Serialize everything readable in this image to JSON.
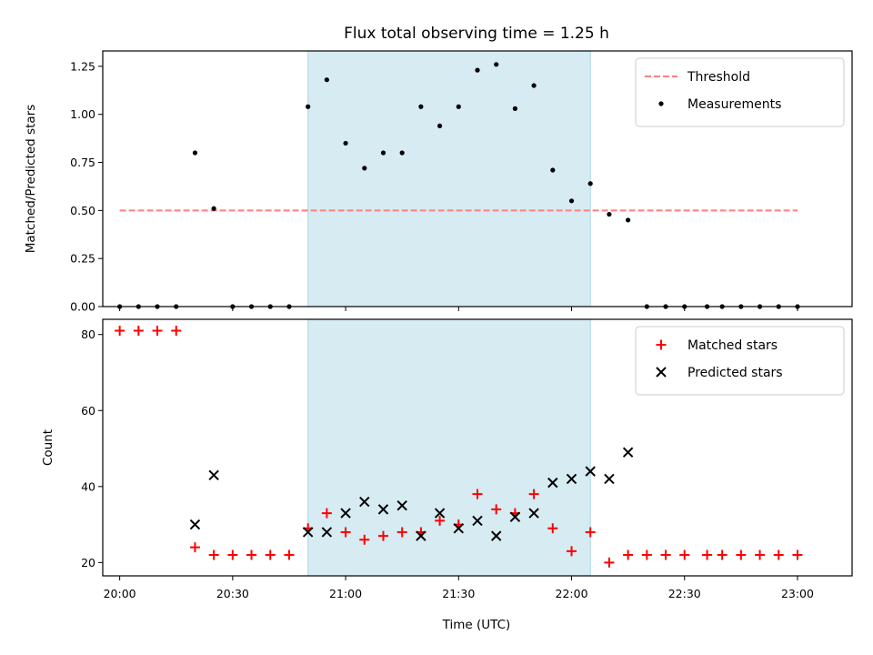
{
  "chart_data": {
    "title": "Flux total observing time = 1.25 h",
    "xlabel": "Time (UTC)",
    "x_ticks": [
      "20:00",
      "20:30",
      "21:00",
      "21:30",
      "22:00",
      "22:30",
      "23:00"
    ],
    "x_range_minutes": [
      -4.5,
      194.5
    ],
    "highlight_span": {
      "start": "20:50",
      "end": "22:05"
    },
    "panels": [
      {
        "type": "scatter",
        "ylabel": "Matched/Predicted stars",
        "ylim": [
          0,
          1.33
        ],
        "yticks": [
          "0.00",
          "0.25",
          "0.50",
          "0.75",
          "1.00",
          "1.25"
        ],
        "legend_position": "top-right",
        "threshold": {
          "name": "Threshold",
          "value": 0.5,
          "x_start": "20:00",
          "x_end": "23:00",
          "color": "#ff7f7f",
          "style": "dashed"
        },
        "series": [
          {
            "name": "Measurements",
            "marker": "dot",
            "color": "#000000",
            "points": [
              {
                "x": "20:00",
                "y": 0
              },
              {
                "x": "20:05",
                "y": 0
              },
              {
                "x": "20:10",
                "y": 0
              },
              {
                "x": "20:15",
                "y": 0
              },
              {
                "x": "20:20",
                "y": 0.8
              },
              {
                "x": "20:25",
                "y": 0.51
              },
              {
                "x": "20:30",
                "y": 0
              },
              {
                "x": "20:35",
                "y": 0
              },
              {
                "x": "20:40",
                "y": 0
              },
              {
                "x": "20:45",
                "y": 0
              },
              {
                "x": "20:50",
                "y": 1.04
              },
              {
                "x": "20:55",
                "y": 1.18
              },
              {
                "x": "21:00",
                "y": 0.85
              },
              {
                "x": "21:05",
                "y": 0.72
              },
              {
                "x": "21:10",
                "y": 0.8
              },
              {
                "x": "21:15",
                "y": 0.8
              },
              {
                "x": "21:20",
                "y": 1.04
              },
              {
                "x": "21:25",
                "y": 0.94
              },
              {
                "x": "21:30",
                "y": 1.04
              },
              {
                "x": "21:35",
                "y": 1.23
              },
              {
                "x": "21:40",
                "y": 1.26
              },
              {
                "x": "21:45",
                "y": 1.03
              },
              {
                "x": "21:50",
                "y": 1.15
              },
              {
                "x": "21:55",
                "y": 0.71
              },
              {
                "x": "22:00",
                "y": 0.55
              },
              {
                "x": "22:05",
                "y": 0.64
              },
              {
                "x": "22:10",
                "y": 0.48
              },
              {
                "x": "22:15",
                "y": 0.45
              },
              {
                "x": "22:20",
                "y": 0
              },
              {
                "x": "22:25",
                "y": 0
              },
              {
                "x": "22:30",
                "y": 0
              },
              {
                "x": "22:36",
                "y": 0
              },
              {
                "x": "22:40",
                "y": 0
              },
              {
                "x": "22:45",
                "y": 0
              },
              {
                "x": "22:50",
                "y": 0
              },
              {
                "x": "22:55",
                "y": 0
              },
              {
                "x": "23:00",
                "y": 0
              }
            ]
          }
        ]
      },
      {
        "type": "scatter",
        "ylabel": "Count",
        "ylim": [
          16.5,
          84
        ],
        "yticks": [
          "20",
          "40",
          "60",
          "80"
        ],
        "legend_position": "top-right",
        "series": [
          {
            "name": "Matched stars",
            "marker": "plus",
            "color": "#ff0000",
            "points": [
              {
                "x": "20:00",
                "y": 81
              },
              {
                "x": "20:05",
                "y": 81
              },
              {
                "x": "20:10",
                "y": 81
              },
              {
                "x": "20:15",
                "y": 81
              },
              {
                "x": "20:20",
                "y": 24
              },
              {
                "x": "20:25",
                "y": 22
              },
              {
                "x": "20:30",
                "y": 22
              },
              {
                "x": "20:35",
                "y": 22
              },
              {
                "x": "20:40",
                "y": 22
              },
              {
                "x": "20:45",
                "y": 22
              },
              {
                "x": "20:50",
                "y": 29
              },
              {
                "x": "20:55",
                "y": 33
              },
              {
                "x": "21:00",
                "y": 28
              },
              {
                "x": "21:05",
                "y": 26
              },
              {
                "x": "21:10",
                "y": 27
              },
              {
                "x": "21:15",
                "y": 28
              },
              {
                "x": "21:20",
                "y": 28
              },
              {
                "x": "21:25",
                "y": 31
              },
              {
                "x": "21:30",
                "y": 30
              },
              {
                "x": "21:35",
                "y": 38
              },
              {
                "x": "21:40",
                "y": 34
              },
              {
                "x": "21:45",
                "y": 33
              },
              {
                "x": "21:50",
                "y": 38
              },
              {
                "x": "21:55",
                "y": 29
              },
              {
                "x": "22:00",
                "y": 23
              },
              {
                "x": "22:05",
                "y": 28
              },
              {
                "x": "22:10",
                "y": 20
              },
              {
                "x": "22:15",
                "y": 22
              },
              {
                "x": "22:20",
                "y": 22
              },
              {
                "x": "22:25",
                "y": 22
              },
              {
                "x": "22:30",
                "y": 22
              },
              {
                "x": "22:36",
                "y": 22
              },
              {
                "x": "22:40",
                "y": 22
              },
              {
                "x": "22:45",
                "y": 22
              },
              {
                "x": "22:50",
                "y": 22
              },
              {
                "x": "22:55",
                "y": 22
              },
              {
                "x": "23:00",
                "y": 22
              }
            ]
          },
          {
            "name": "Predicted stars",
            "marker": "x",
            "color": "#000000",
            "points": [
              {
                "x": "20:20",
                "y": 30
              },
              {
                "x": "20:25",
                "y": 43
              },
              {
                "x": "20:50",
                "y": 28
              },
              {
                "x": "20:55",
                "y": 28
              },
              {
                "x": "21:00",
                "y": 33
              },
              {
                "x": "21:05",
                "y": 36
              },
              {
                "x": "21:10",
                "y": 34
              },
              {
                "x": "21:15",
                "y": 35
              },
              {
                "x": "21:20",
                "y": 27
              },
              {
                "x": "21:25",
                "y": 33
              },
              {
                "x": "21:30",
                "y": 29
              },
              {
                "x": "21:35",
                "y": 31
              },
              {
                "x": "21:40",
                "y": 27
              },
              {
                "x": "21:45",
                "y": 32
              },
              {
                "x": "21:50",
                "y": 33
              },
              {
                "x": "21:55",
                "y": 41
              },
              {
                "x": "22:00",
                "y": 42
              },
              {
                "x": "22:05",
                "y": 44
              },
              {
                "x": "22:10",
                "y": 42
              },
              {
                "x": "22:15",
                "y": 49
              }
            ]
          }
        ]
      }
    ]
  },
  "colors": {
    "span": "#add8e6",
    "threshold": "#ff7f7f",
    "matched": "#ff0000",
    "predicted": "#000000",
    "measurement": "#000000"
  }
}
